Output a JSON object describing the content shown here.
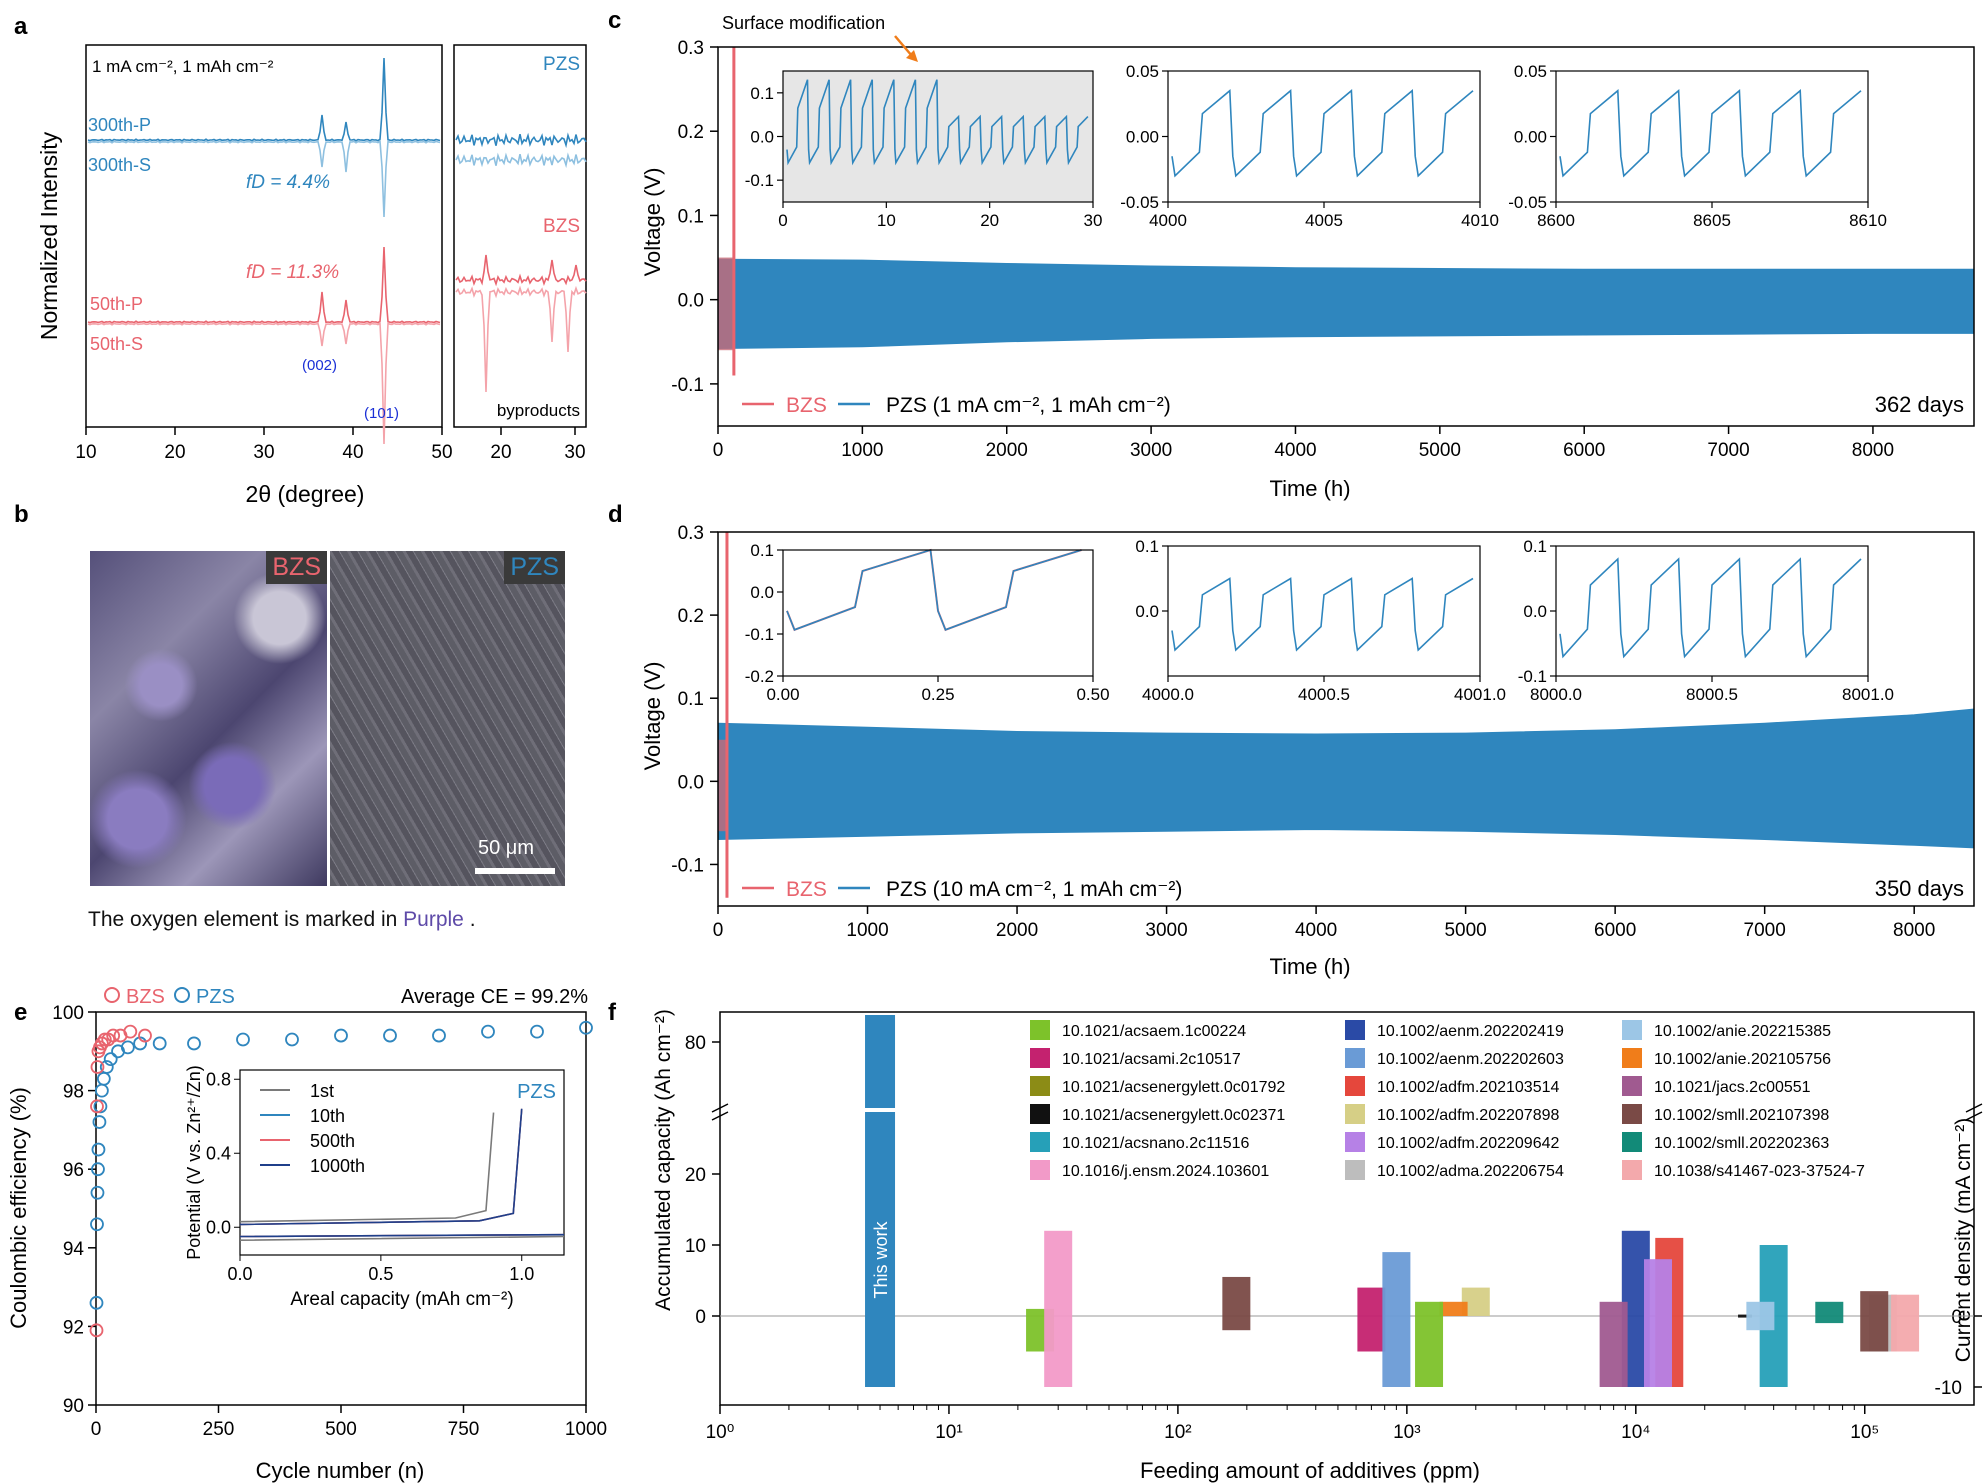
{
  "colors": {
    "bzs": "#e8646e",
    "bzs_light": "#f4a3aa",
    "pzs": "#2f86be",
    "pzs_light": "#8ec0e0",
    "purple": "#5e4aa8",
    "orange": "#f07d1a",
    "dark_blue": "#1f3f8a"
  },
  "panel_labels": {
    "a": "a",
    "b": "b",
    "c": "c",
    "d": "d",
    "e": "e",
    "f": "f"
  },
  "panel_a": {
    "condition": "1 mA cm⁻², 1 mAh cm⁻²",
    "ylabel": "Normalized Intensity",
    "xlabel": "2θ (degree)",
    "xticks_left": [
      "10",
      "20",
      "30",
      "40",
      "50"
    ],
    "xticks_right": [
      "20",
      "30"
    ],
    "pzs_label": "PZS",
    "bzs_label": "BZS",
    "byproducts_label": "byproducts",
    "trace_labels": {
      "p300": "300th-P",
      "s300": "300th-S",
      "p50": "50th-P",
      "s50": "50th-S"
    },
    "fd_pzs": "fD = 4.4%",
    "fd_bzs": "fD = 11.3%",
    "peak_002": "(002)",
    "peak_101": "(101)"
  },
  "panel_b": {
    "bzs_label": "BZS",
    "pzs_label": "PZS",
    "scale_bar": "50 μm",
    "caption_prefix": "The oxygen element is marked in ",
    "caption_highlight": "Purple",
    "caption_suffix": " ."
  },
  "chart_data": [
    {
      "id": "c",
      "type": "line",
      "title": "",
      "annotation": "Surface modification",
      "xlabel": "Time (h)",
      "ylabel": "Voltage (V)",
      "xlim": [
        0,
        8700
      ],
      "ylim": [
        -0.15,
        0.3
      ],
      "xticks": [
        "0",
        "1000",
        "2000",
        "3000",
        "4000",
        "5000",
        "6000",
        "7000",
        "8000"
      ],
      "yticks": [
        "-0.1",
        "0.0",
        "0.1",
        "0.2",
        "0.3"
      ],
      "legend": {
        "bzs": "BZS",
        "pzs": "PZS (1 mA cm⁻², 1 mAh cm⁻²)"
      },
      "duration": "362 days",
      "series": [
        {
          "name": "BZS",
          "x_end": 110,
          "envelope": [
            -0.09,
            0.3
          ]
        },
        {
          "name": "PZS",
          "envelope_x": [
            0,
            1000,
            2000,
            3000,
            4000,
            5000,
            6000,
            7000,
            8000,
            8700
          ],
          "upper": [
            0.048,
            0.047,
            0.043,
            0.04,
            0.038,
            0.037,
            0.036,
            0.036,
            0.036,
            0.036
          ],
          "lower": [
            -0.058,
            -0.056,
            -0.05,
            -0.046,
            -0.044,
            -0.043,
            -0.042,
            -0.041,
            -0.04,
            -0.04
          ]
        }
      ],
      "insets": [
        {
          "xlim": [
            0,
            30
          ],
          "ylim": [
            -0.15,
            0.15
          ],
          "xticks": [
            "0",
            "10",
            "20",
            "30"
          ],
          "yticks": [
            "-0.1",
            "0.0",
            "0.1"
          ]
        },
        {
          "xlim": [
            4000,
            4010
          ],
          "ylim": [
            -0.05,
            0.05
          ],
          "xticks": [
            "4000",
            "4005",
            "4010"
          ],
          "yticks": [
            "-0.05",
            "0.00",
            "0.05"
          ]
        },
        {
          "xlim": [
            8600,
            8610
          ],
          "ylim": [
            -0.05,
            0.05
          ],
          "xticks": [
            "8600",
            "8605",
            "8610"
          ],
          "yticks": [
            "-0.05",
            "0.00",
            "0.05"
          ]
        }
      ]
    },
    {
      "id": "d",
      "type": "line",
      "xlabel": "Time (h)",
      "ylabel": "Voltage (V)",
      "xlim": [
        0,
        8400
      ],
      "ylim": [
        -0.15,
        0.3
      ],
      "xticks": [
        "0",
        "1000",
        "2000",
        "3000",
        "4000",
        "5000",
        "6000",
        "7000",
        "8000"
      ],
      "yticks": [
        "-0.1",
        "0.0",
        "0.1",
        "0.2",
        "0.3"
      ],
      "legend": {
        "bzs": "BZS",
        "pzs": "PZS (10 mA cm⁻², 1 mAh cm⁻²)"
      },
      "duration": "350 days",
      "series": [
        {
          "name": "BZS",
          "x_end": 60,
          "envelope": [
            -0.14,
            0.3
          ]
        },
        {
          "name": "PZS",
          "envelope_x": [
            0,
            1000,
            2000,
            3000,
            4000,
            5000,
            6000,
            7000,
            8000,
            8400
          ],
          "upper": [
            0.07,
            0.065,
            0.06,
            0.058,
            0.057,
            0.058,
            0.062,
            0.07,
            0.08,
            0.087
          ],
          "lower": [
            -0.07,
            -0.066,
            -0.062,
            -0.06,
            -0.058,
            -0.06,
            -0.064,
            -0.07,
            -0.077,
            -0.08
          ]
        }
      ],
      "insets": [
        {
          "xlim": [
            0,
            0.5
          ],
          "ylim": [
            -0.2,
            0.1
          ],
          "xticks": [
            "0.00",
            "0.25",
            "0.50"
          ],
          "yticks": [
            "-0.2",
            "-0.1",
            "0.0",
            "0.1"
          ]
        },
        {
          "xlim": [
            4000,
            4001
          ],
          "ylim": [
            -0.1,
            0.1
          ],
          "xticks": [
            "4000.0",
            "4000.5",
            "4001.0"
          ],
          "yticks": [
            "0.0",
            "0.1"
          ]
        },
        {
          "xlim": [
            8000,
            8001
          ],
          "ylim": [
            -0.1,
            0.1
          ],
          "xticks": [
            "8000.0",
            "8000.5",
            "8001.0"
          ],
          "yticks": [
            "-0.1",
            "0.0",
            "0.1"
          ]
        }
      ]
    },
    {
      "id": "e",
      "type": "scatter",
      "xlabel": "Cycle number (n)",
      "ylabel": "Coulombic efficiency (%)",
      "xlim": [
        0,
        1000
      ],
      "ylim": [
        90,
        100
      ],
      "xticks": [
        "0",
        "250",
        "500",
        "750",
        "1000"
      ],
      "yticks": [
        "90",
        "92",
        "94",
        "96",
        "98",
        "100"
      ],
      "legend": {
        "bzs": "BZS",
        "pzs": "PZS"
      },
      "average": "Average CE = 99.2%",
      "series": [
        {
          "name": "BZS",
          "x": [
            1,
            2,
            3,
            5,
            8,
            12,
            18,
            25,
            35,
            50,
            70,
            100
          ],
          "y": [
            91.9,
            97.6,
            98.6,
            99.0,
            99.1,
            99.2,
            99.3,
            99.3,
            99.4,
            99.4,
            99.5,
            99.4
          ]
        },
        {
          "name": "PZS",
          "x": [
            1,
            2,
            3,
            4,
            5,
            7,
            9,
            12,
            16,
            22,
            30,
            45,
            65,
            90,
            130,
            200,
            300,
            400,
            500,
            600,
            700,
            800,
            900,
            1000
          ],
          "y": [
            92.6,
            94.6,
            95.4,
            96.0,
            96.5,
            97.2,
            97.6,
            98.0,
            98.3,
            98.6,
            98.8,
            99.0,
            99.1,
            99.2,
            99.2,
            99.2,
            99.3,
            99.3,
            99.4,
            99.4,
            99.4,
            99.5,
            99.5,
            99.6
          ]
        }
      ],
      "inset": {
        "xlabel": "Areal capacity (mAh cm⁻²)",
        "ylabel": "Potential (V vs. Zn²⁺/Zn)",
        "xlim": [
          0,
          1.15
        ],
        "ylim": [
          -0.15,
          0.85
        ],
        "xticks": [
          "0.0",
          "0.5",
          "1.0"
        ],
        "yticks": [
          "0.0",
          "0.4",
          "0.8"
        ],
        "label": "PZS",
        "legend": [
          "1st",
          "10th",
          "500th",
          "1000th"
        ]
      }
    },
    {
      "id": "f",
      "type": "bar",
      "xlabel": "Feeding amount of additives (ppm)",
      "ylabel_left": "Accumulated capacity (Ah cm⁻²)",
      "ylabel_right": "Current density (mA cm⁻²)",
      "xscale": "log",
      "xlim": [
        1,
        300000
      ],
      "xticks": [
        "10⁰",
        "10¹",
        "10²",
        "10³",
        "10⁴",
        "10⁵"
      ],
      "yticks_left": [
        "0",
        "10",
        "20",
        "80"
      ],
      "yticks_right": [
        "0",
        "-10"
      ],
      "this_work_label": "This work",
      "entries": [
        {
          "doi": "10.1021/acsaem.1c00224",
          "color": "#7dc22a",
          "ppm": 25,
          "top": 1,
          "bottom": -5
        },
        {
          "doi": "10.1021/acsami.2c10517",
          "color": "#c4226f",
          "ppm": 700,
          "top": 4,
          "bottom": -5
        },
        {
          "doi": "10.1021/acsenergylett.0c01792",
          "color": "#8c8c16",
          "ppm": 5000,
          "top": 0,
          "bottom": 0
        },
        {
          "doi": "10.1021/acsenergylett.0c02371",
          "color": "#111111",
          "ppm": 30000,
          "top": 0.2,
          "bottom": -0.2
        },
        {
          "doi": "10.1021/acsnano.2c11516",
          "color": "#26a0b8",
          "ppm": 40000,
          "top": 10,
          "bottom": -10
        },
        {
          "doi": "10.1016/j.ensm.2024.103601",
          "color": "#f29ac8",
          "ppm": 30,
          "top": 12,
          "bottom": -10
        },
        {
          "doi": "10.1002/aenm.202202419",
          "color": "#2a4aa6",
          "ppm": 10000,
          "top": 12,
          "bottom": -10
        },
        {
          "doi": "10.1002/aenm.202202603",
          "color": "#6a9bd6",
          "ppm": 900,
          "top": 9,
          "bottom": -10
        },
        {
          "doi": "10.1002/adfm.202103514",
          "color": "#e5473c",
          "ppm": 14000,
          "top": 11,
          "bottom": -10
        },
        {
          "doi": "10.1002/adfm.202207898",
          "color": "#d6cf86",
          "ppm": 2000,
          "top": 4,
          "bottom": 0
        },
        {
          "doi": "10.1002/adfm.202209642",
          "color": "#b681e6",
          "ppm": 12500,
          "top": 8,
          "bottom": -10
        },
        {
          "doi": "10.1002/adma.202206754",
          "color": "#bdbdbd",
          "ppm": 120000,
          "top": 3,
          "bottom": -5
        },
        {
          "doi": "10.1002/anie.202215385",
          "color": "#9cc6e6",
          "ppm": 35000,
          "top": 2,
          "bottom": -2
        },
        {
          "doi": "10.1002/anie.202105756",
          "color": "#f07d1a",
          "ppm": 1600,
          "top": 2,
          "bottom": 0
        },
        {
          "doi": "10.1021/jacs.2c00551",
          "color": "#a05a90",
          "ppm": 8000,
          "top": 2,
          "bottom": -10
        },
        {
          "doi": "10.1002/smll.202107398",
          "color": "#7a4a46",
          "ppm": 180,
          "top": 5.5,
          "bottom": -2
        },
        {
          "doi": "10.1002/smll.202202363",
          "color": "#128a78",
          "ppm": 70000,
          "top": 2,
          "bottom": -1
        },
        {
          "doi": "10.1038/s41467-023-37524-7",
          "color": "#f3a9ac",
          "ppm": 150000,
          "top": 3,
          "bottom": -5
        }
      ],
      "extra_bars": [
        {
          "color": "#7dc22a",
          "ppm": 1250,
          "top": 2,
          "bottom": -10
        },
        {
          "color": "#7a4a46",
          "ppm": 110000,
          "top": 3.5,
          "bottom": -5
        }
      ],
      "this_work": {
        "ppm": 5,
        "top_broken": 85,
        "bottom": -10
      }
    }
  ]
}
